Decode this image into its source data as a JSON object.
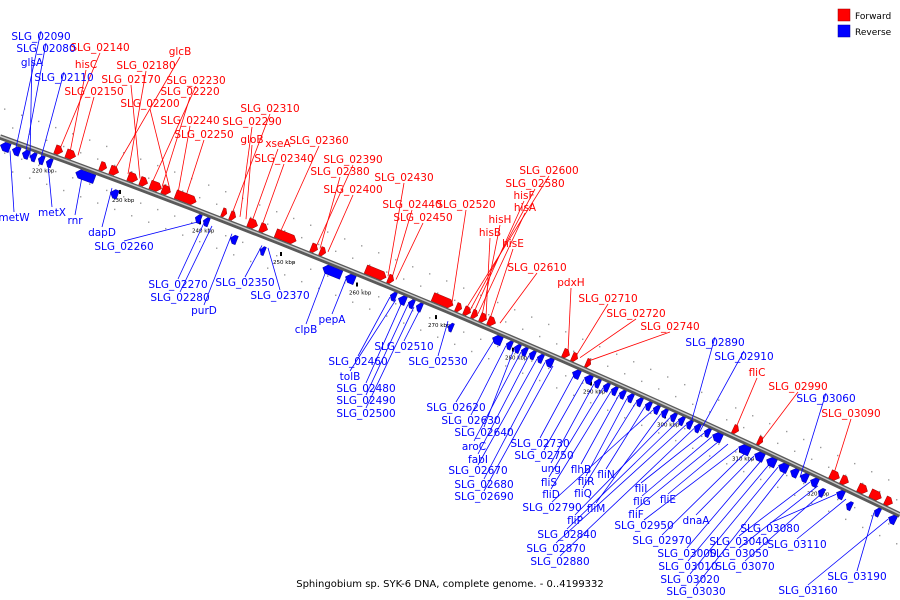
{
  "legend": {
    "forward_label": "Forward",
    "reverse_label": "Reverse",
    "forward_color": "#ff0000",
    "reverse_color": "#0000ff"
  },
  "caption": "Sphingobium sp. SYK-6 DNA, complete genome. - 0..4199332",
  "ticks": [
    "220 kbp",
    "230 kbp",
    "240 kbp",
    "250 kbp",
    "260 kbp",
    "270 kbp",
    "280 kbp",
    "290 kbp",
    "300 kbp",
    "310 kbp",
    "320 kbp"
  ],
  "forward_labels": [
    "SLG_02140",
    "hisC",
    "glcB",
    "SLG_02180",
    "SLG_02170",
    "SLG_02230",
    "SLG_02150",
    "SLG_02220",
    "SLG_02200",
    "SLG_02240",
    "SLG_02250",
    "SLG_02310",
    "SLG_02290",
    "gloB",
    "xseA",
    "SLG_02360",
    "SLG_02340",
    "SLG_02390",
    "SLG_02380",
    "SLG_02400",
    "SLG_02430",
    "SLG_02440",
    "SLG_02450",
    "SLG_02520",
    "SLG_02600",
    "SLG_02580",
    "hisF",
    "hisA",
    "hisH",
    "hisB",
    "hisE",
    "SLG_02610",
    "pdxH",
    "SLG_02710",
    "SLG_02720",
    "SLG_02740",
    "fliC",
    "SLG_02990",
    "SLG_03090"
  ],
  "reverse_labels": [
    "SLG_02090",
    "SLG_02080",
    "glsA",
    "SLG_02110",
    "metW",
    "metX",
    "rnr",
    "dapD",
    "SLG_02260",
    "SLG_02270",
    "SLG_02280",
    "purD",
    "SLG_02350",
    "SLG_02370",
    "clpB",
    "pepA",
    "SLG_02460",
    "tolB",
    "SLG_02480",
    "SLG_02490",
    "SLG_02500",
    "SLG_02510",
    "SLG_02530",
    "SLG_02620",
    "SLG_02630",
    "SLG_02640",
    "aroC",
    "fabI",
    "SLG_02670",
    "SLG_02680",
    "SLG_02690",
    "SLG_02730",
    "SLG_02750",
    "ung",
    "fliS",
    "fliD",
    "flhB",
    "fliR",
    "fliQ",
    "fliN",
    "SLG_02790",
    "fliM",
    "fliP",
    "SLG_02840",
    "SLG_02870",
    "SLG_02880",
    "SLG_02890",
    "SLG_02910",
    "fliI",
    "fliG",
    "fliF",
    "fliE",
    "SLG_02950",
    "SLG_02970",
    "dnaA",
    "SLG_03000",
    "SLG_03010",
    "SLG_03020",
    "SLG_03030",
    "SLG_03060",
    "SLG_03040",
    "SLG_03050",
    "SLG_03070",
    "SLG_03080",
    "SLG_03110",
    "SLG_03190",
    "SLG_03160"
  ]
}
